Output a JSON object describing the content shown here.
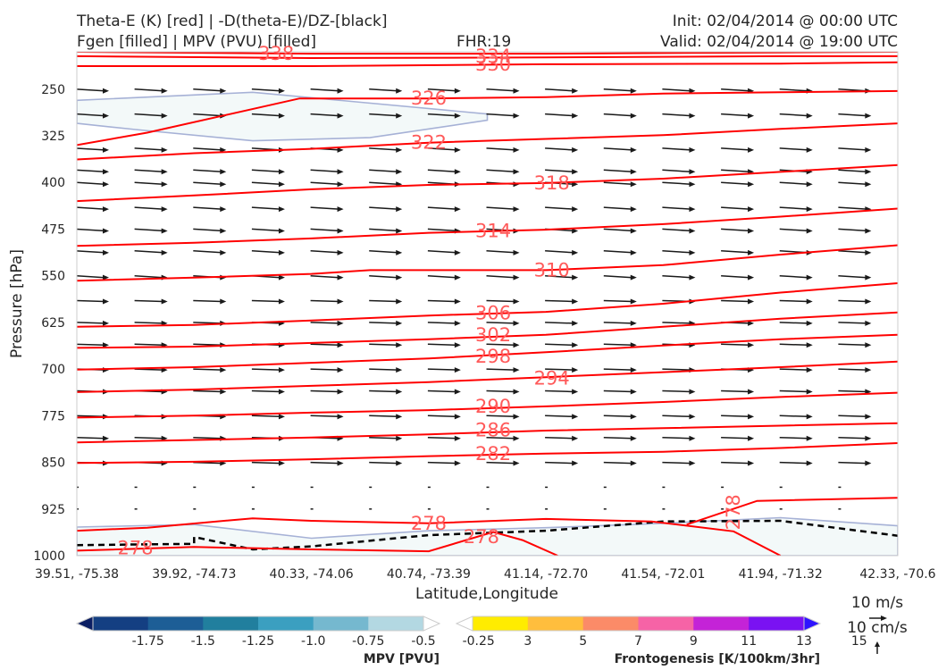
{
  "header": {
    "left_line1": "Theta-E (K) [red] | -D(theta-E)/DZ-[black]",
    "left_line2": "Fgen [filled] | MPV (PVU) [filled]",
    "center": "FHR:19",
    "right_line1": "Init: 02/04/2014 @ 00:00 UTC",
    "right_line2": "Valid: 02/04/2014 @ 19:00 UTC"
  },
  "colors": {
    "theta_e": "#ff0000",
    "theta_e_label": "#ff5a5a",
    "stability": "#000000",
    "mpv_fill": "#f3f9f9",
    "mpv_edge": "#a6b1d6",
    "vectors": "#1a1a1a"
  },
  "chart_data": {
    "type": "cross-section",
    "xlabel": "Latitude,Longitude",
    "ylabel": "Pressure [hPa]",
    "x_ticks": [
      "39.51, -75.38",
      "39.92, -74.73",
      "40.33, -74.06",
      "40.74, -73.39",
      "41.14, -72.70",
      "41.54, -72.01",
      "41.94, -71.32",
      "42.33, -70.6"
    ],
    "x_range": [
      0,
      7
    ],
    "y_ticks": [
      250,
      325,
      400,
      475,
      550,
      625,
      700,
      775,
      850,
      925,
      1000
    ],
    "y_range": [
      1000,
      190
    ],
    "theta_e_contours": [
      {
        "label": "338",
        "points": [
          [
            0,
            190
          ],
          [
            2,
            193
          ],
          [
            4,
            193
          ],
          [
            6,
            191
          ],
          [
            7,
            190
          ]
        ]
      },
      {
        "label": "334",
        "points": [
          [
            0,
            197
          ],
          [
            2,
            200
          ],
          [
            4,
            199
          ],
          [
            6,
            197
          ],
          [
            7,
            197
          ]
        ]
      },
      {
        "label": "330",
        "points": [
          [
            0,
            213
          ],
          [
            2,
            213
          ],
          [
            4,
            210
          ],
          [
            6,
            209
          ],
          [
            7,
            207
          ]
        ]
      },
      {
        "label": "326",
        "points": [
          [
            0,
            340
          ],
          [
            0.6,
            320
          ],
          [
            1.9,
            265
          ],
          [
            3,
            265
          ],
          [
            4,
            263
          ],
          [
            5,
            257
          ],
          [
            6,
            255
          ],
          [
            7,
            253
          ]
        ]
      },
      {
        "label": "322",
        "points": [
          [
            0,
            363
          ],
          [
            1,
            353
          ],
          [
            2,
            346
          ],
          [
            3,
            336
          ],
          [
            4,
            330
          ],
          [
            5,
            324
          ],
          [
            6,
            314
          ],
          [
            7,
            305
          ]
        ]
      },
      {
        "label": "318",
        "points": [
          [
            0,
            430
          ],
          [
            1,
            421
          ],
          [
            2,
            411
          ],
          [
            3,
            404
          ],
          [
            4,
            401
          ],
          [
            5,
            394
          ],
          [
            6,
            383
          ],
          [
            7,
            372
          ]
        ]
      },
      {
        "label": "314",
        "points": [
          [
            0,
            502
          ],
          [
            1,
            497
          ],
          [
            2,
            490
          ],
          [
            3,
            481
          ],
          [
            4,
            476
          ],
          [
            5,
            467
          ],
          [
            6,
            455
          ],
          [
            7,
            442
          ]
        ]
      },
      {
        "label": "310",
        "points": [
          [
            0,
            558
          ],
          [
            1,
            553
          ],
          [
            2,
            547
          ],
          [
            2.5,
            541
          ],
          [
            3.5,
            541
          ],
          [
            4,
            541
          ],
          [
            5,
            533
          ],
          [
            6,
            516
          ],
          [
            7,
            501
          ]
        ]
      },
      {
        "label": "306",
        "points": [
          [
            0,
            632
          ],
          [
            1,
            629
          ],
          [
            2,
            622
          ],
          [
            3,
            614
          ],
          [
            4,
            608
          ],
          [
            5,
            595
          ],
          [
            6,
            577
          ],
          [
            7,
            562
          ]
        ]
      },
      {
        "label": "302",
        "points": [
          [
            0,
            666
          ],
          [
            1,
            664
          ],
          [
            2,
            658
          ],
          [
            3,
            652
          ],
          [
            4,
            645
          ],
          [
            5,
            632
          ],
          [
            6,
            619
          ],
          [
            7,
            609
          ]
        ]
      },
      {
        "label": "298",
        "points": [
          [
            0,
            701
          ],
          [
            1,
            697
          ],
          [
            2,
            690
          ],
          [
            3,
            683
          ],
          [
            4,
            673
          ],
          [
            5,
            662
          ],
          [
            6,
            652
          ],
          [
            7,
            645
          ]
        ]
      },
      {
        "label": "294",
        "points": [
          [
            0,
            737
          ],
          [
            1,
            733
          ],
          [
            2,
            727
          ],
          [
            3,
            721
          ],
          [
            4,
            713
          ],
          [
            5,
            705
          ],
          [
            6,
            697
          ],
          [
            7,
            688
          ]
        ]
      },
      {
        "label": "290",
        "points": [
          [
            0,
            778
          ],
          [
            1,
            775
          ],
          [
            2,
            770
          ],
          [
            3,
            766
          ],
          [
            4,
            760
          ],
          [
            5,
            753
          ],
          [
            6,
            745
          ],
          [
            7,
            738
          ]
        ]
      },
      {
        "label": "286",
        "points": [
          [
            0,
            818
          ],
          [
            1,
            814
          ],
          [
            2,
            810
          ],
          [
            3,
            805
          ],
          [
            4,
            799
          ],
          [
            5,
            795
          ],
          [
            6,
            791
          ],
          [
            7,
            787
          ]
        ]
      },
      {
        "label": "282",
        "points": [
          [
            0,
            851
          ],
          [
            1,
            849
          ],
          [
            2,
            845
          ],
          [
            3,
            840
          ],
          [
            4,
            836
          ],
          [
            5,
            833
          ],
          [
            6,
            827
          ],
          [
            7,
            819
          ]
        ]
      },
      {
        "label": "278",
        "points": [
          [
            0,
            960
          ],
          [
            0.6,
            955
          ],
          [
            1.5,
            940
          ],
          [
            2,
            944
          ],
          [
            3,
            948
          ],
          [
            4,
            941
          ],
          [
            4.9,
            945
          ],
          [
            5.6,
            961
          ],
          [
            6,
            1000
          ]
        ]
      },
      {
        "label": "278",
        "points": [
          [
            5.2,
            950
          ],
          [
            5.8,
            912
          ],
          [
            7,
            907
          ]
        ]
      },
      {
        "label": "278",
        "points": [
          [
            0,
            992
          ],
          [
            1,
            986
          ],
          [
            2,
            990
          ],
          [
            3,
            993
          ],
          [
            3.55,
            962
          ],
          [
            3.8,
            975
          ],
          [
            4.1,
            1000
          ]
        ]
      }
    ],
    "stability_contour": {
      "points": [
        [
          0,
          983
        ],
        [
          1,
          981
        ],
        [
          1,
          970
        ],
        [
          1.5,
          990
        ],
        [
          2,
          985
        ],
        [
          3,
          967
        ],
        [
          4,
          960
        ],
        [
          5,
          945
        ],
        [
          6,
          944
        ],
        [
          7,
          968
        ]
      ]
    },
    "mpv_regions": [
      {
        "points": [
          [
            0,
            268
          ],
          [
            1.5,
            255
          ],
          [
            3.5,
            290
          ],
          [
            3.5,
            300
          ],
          [
            2.5,
            328
          ],
          [
            1.5,
            333
          ],
          [
            0.5,
            315
          ],
          [
            0,
            305
          ]
        ]
      },
      {
        "points": [
          [
            0,
            954
          ],
          [
            1,
            950
          ],
          [
            2,
            972
          ],
          [
            3,
            960
          ],
          [
            4,
            955
          ],
          [
            5,
            948
          ],
          [
            6,
            939
          ],
          [
            7,
            952
          ],
          [
            7,
            1000
          ],
          [
            0,
            1000
          ]
        ]
      }
    ],
    "wind_vectors": {
      "shaft_px": 32,
      "rows": [
        250,
        290,
        345,
        380,
        400,
        440,
        475,
        510,
        550,
        590,
        625,
        660,
        700,
        735,
        775,
        810,
        850,
        890,
        925
      ]
    },
    "colorbars": [
      {
        "title": "MPV [PVU]",
        "labels": [
          "-1.75",
          "-1.5",
          "-1.25",
          "-1.0",
          "-0.75",
          "-0.5",
          "-0.25"
        ],
        "colors": [
          "#0b1e63",
          "#143f82",
          "#1d5e96",
          "#217f9e",
          "#3b9fc0",
          "#75b8cf",
          "#b3d8e2",
          "#ffffff"
        ]
      },
      {
        "title": "Frontogenesis [K/100km/3hr]",
        "labels": [
          "3",
          "5",
          "7",
          "9",
          "11",
          "13",
          "15"
        ],
        "colors": [
          "#ffffff",
          "#ffec00",
          "#ffbe3d",
          "#fb8b68",
          "#f663a6",
          "#c423d7",
          "#7a12f2",
          "#2f14ff"
        ]
      }
    ],
    "vector_key": {
      "label_1": "10 m/s",
      "label_2": "10 cm/s"
    }
  }
}
